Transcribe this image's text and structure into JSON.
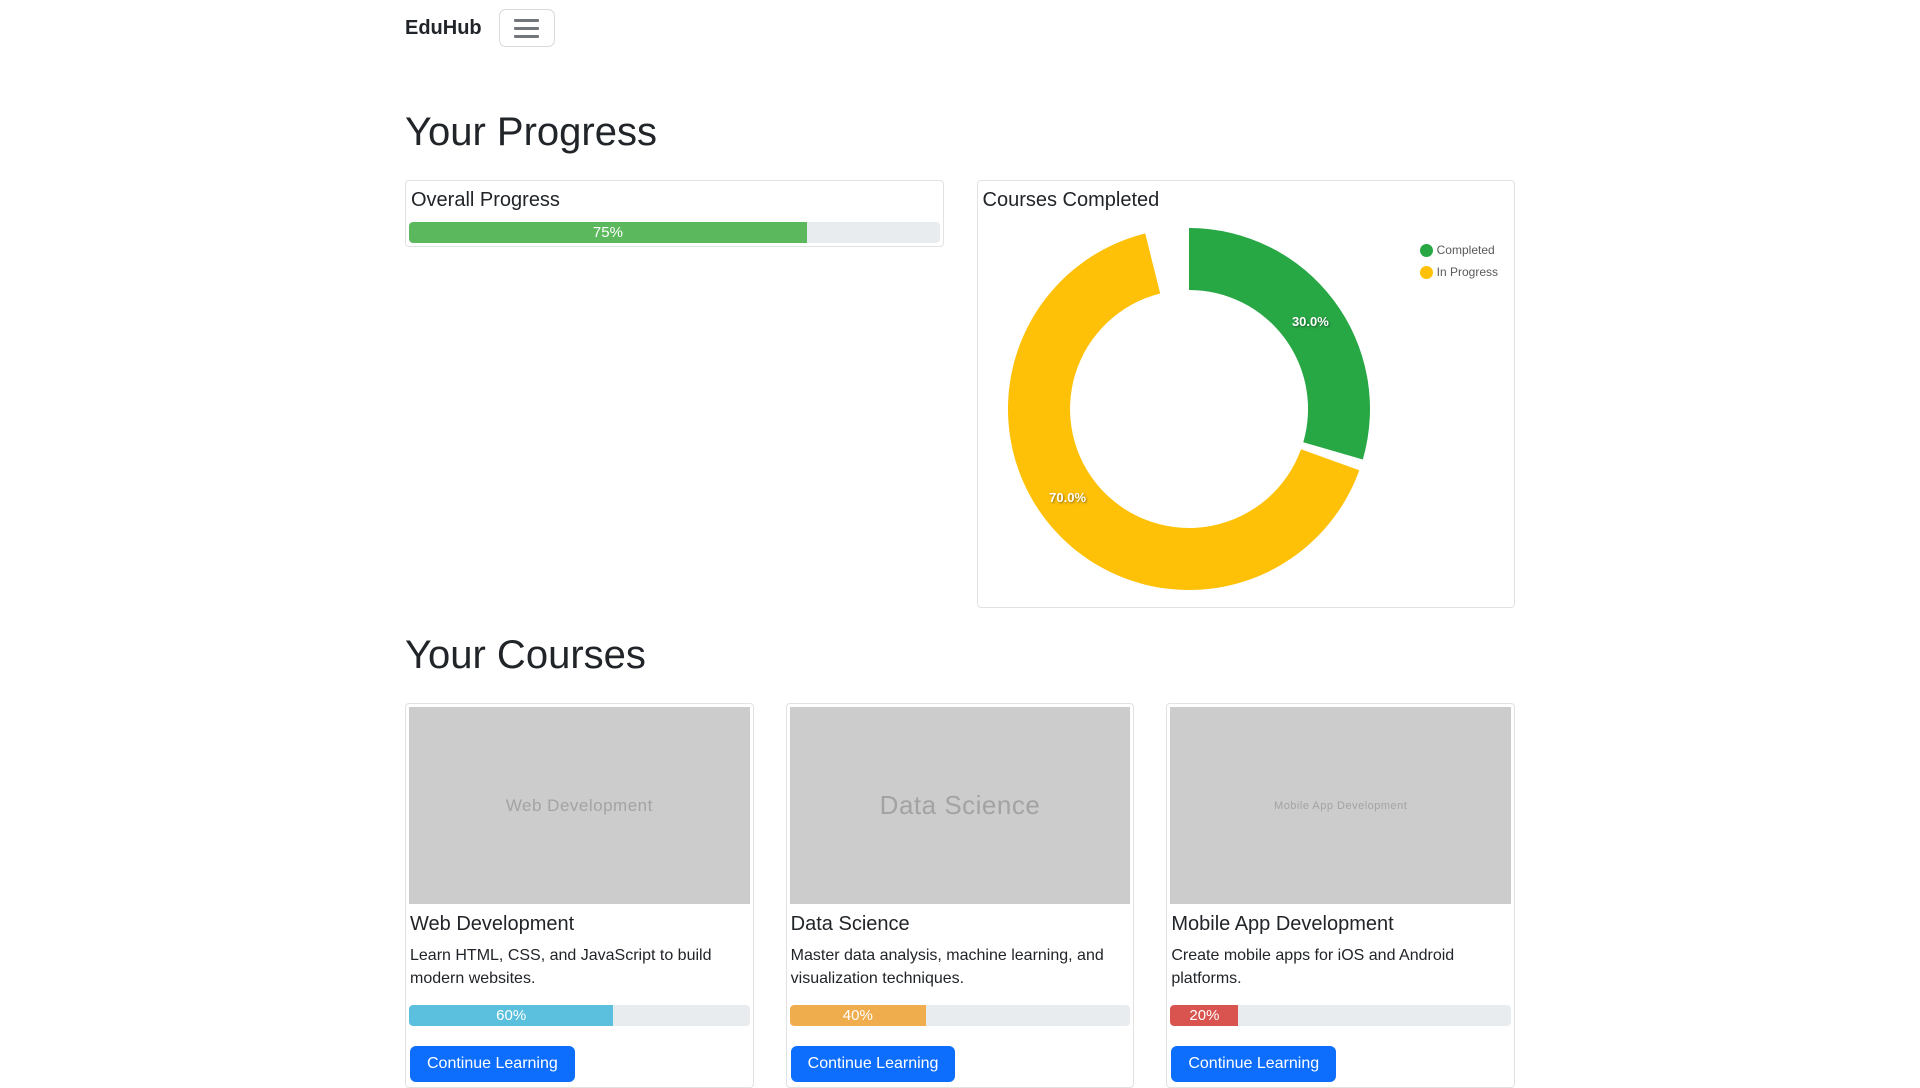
{
  "navbar": {
    "brand": "EduHub"
  },
  "progress_section": {
    "heading": "Your Progress",
    "overall_card": {
      "title": "Overall Progress",
      "percent": 75,
      "label": "75%",
      "bar_color": "#5cb85c"
    },
    "courses_card": {
      "title": "Courses Completed"
    }
  },
  "chart_data": {
    "type": "pie",
    "title": "Courses Completed",
    "labels": [
      "Completed",
      "In Progress"
    ],
    "values": [
      30,
      70
    ],
    "slice_labels": [
      "30.0%",
      "70.0%"
    ],
    "colors": [
      "#28a745",
      "#ffc107"
    ],
    "donut": true,
    "cutout_ratio": 0.66,
    "start_angle": "top",
    "direction": "clockwise",
    "legend_position": "right",
    "top_gap_deg": 14,
    "slice_gap_deg": 1.8
  },
  "courses_section": {
    "heading": "Your Courses",
    "button_color": "#0d6efd",
    "cards": [
      {
        "image_label": "Web Development",
        "title": "Web Development",
        "description": "Learn HTML, CSS, and JavaScript to build modern websites.",
        "percent": 60,
        "label": "60%",
        "bar_color": "#5bc0de",
        "button": "Continue Learning"
      },
      {
        "image_label": "Data Science",
        "title": "Data Science",
        "description": "Master data analysis, machine learning, and visualization techniques.",
        "percent": 40,
        "label": "40%",
        "bar_color": "#f0ad4e",
        "button": "Continue Learning"
      },
      {
        "image_label": "Mobile App Development",
        "title": "Mobile App Development",
        "description": "Create mobile apps for iOS and Android platforms.",
        "percent": 20,
        "label": "20%",
        "bar_color": "#d9534f",
        "button": "Continue Learning"
      }
    ]
  }
}
